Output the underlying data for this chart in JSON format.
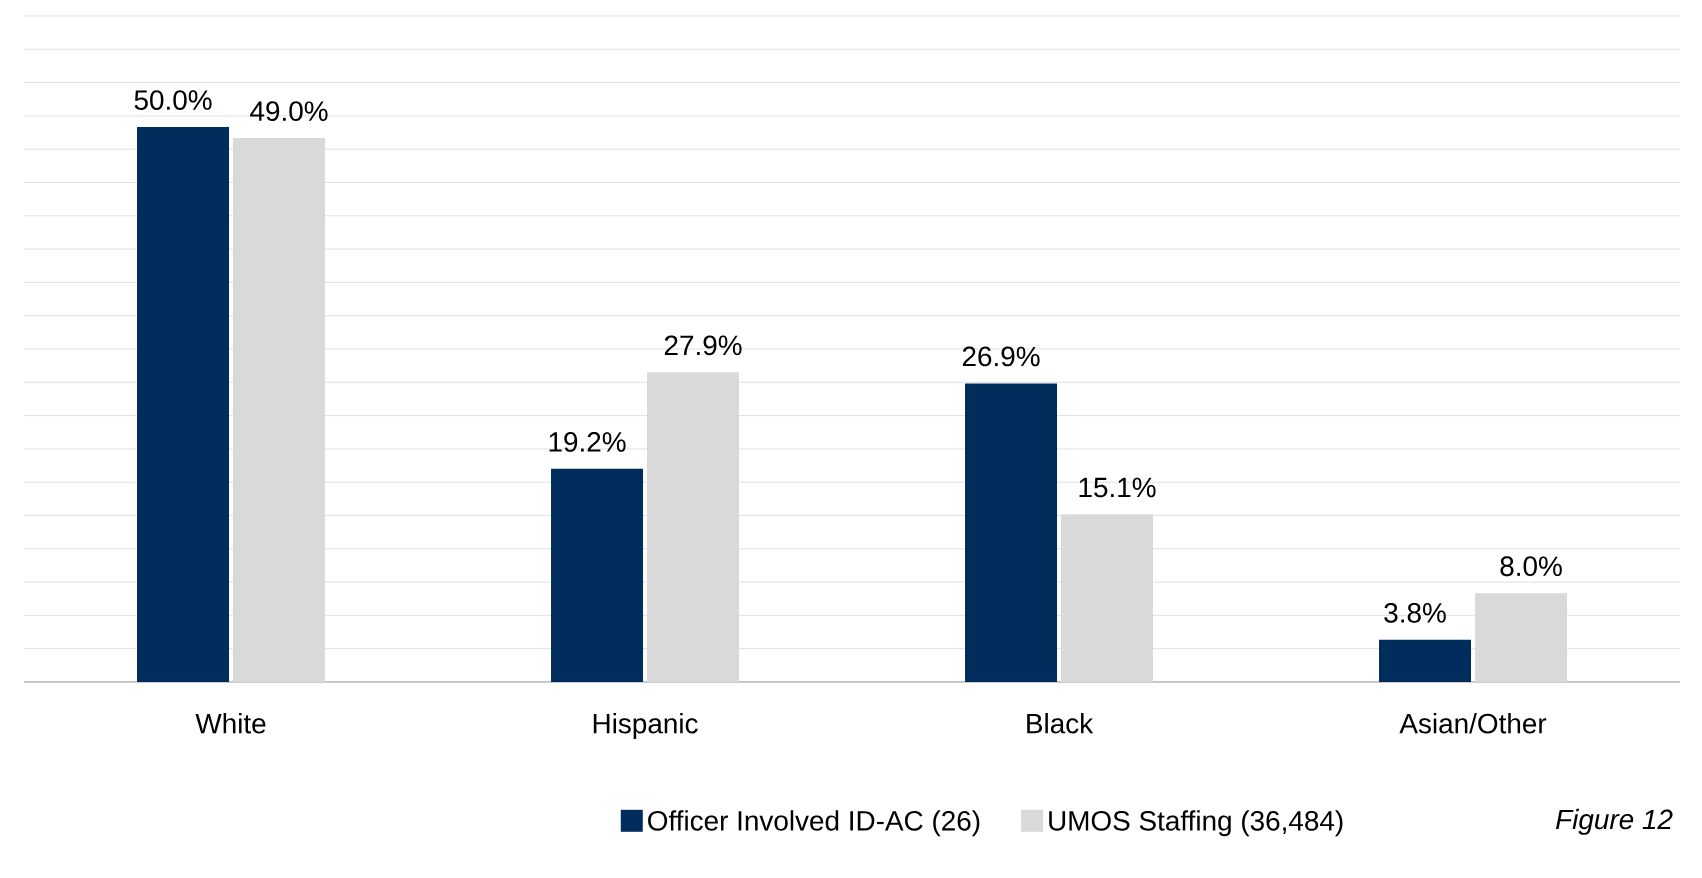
{
  "chart_data": {
    "type": "bar",
    "categories": [
      "White",
      "Hispanic",
      "Black",
      "Asian/Other"
    ],
    "series": [
      {
        "name": "Officer Involved ID-AC (26)",
        "color": "#002d5c",
        "values": [
          50.0,
          19.2,
          26.9,
          3.8
        ],
        "value_labels": [
          "50.0%",
          "19.2%",
          "26.9%",
          "3.8%"
        ]
      },
      {
        "name": "UMOS Staffing (36,484)",
        "color": "#d9d9d9",
        "values": [
          49.0,
          27.9,
          15.1,
          8.0
        ],
        "value_labels": [
          "49.0%",
          "27.9%",
          "15.1%",
          "8.0%"
        ]
      }
    ],
    "ylim": [
      0,
      60
    ],
    "yticks": [
      {
        "value": 0,
        "label": null
      },
      {
        "value": 3,
        "label": null
      },
      {
        "value": 6,
        "label": null
      },
      {
        "value": 9,
        "label": null
      },
      {
        "value": 12,
        "label": null
      },
      {
        "value": 15,
        "label": null
      },
      {
        "value": 18,
        "label": null
      },
      {
        "value": 21,
        "label": null
      },
      {
        "value": 24,
        "label": null
      },
      {
        "value": 27,
        "label": null
      },
      {
        "value": 30,
        "label": null
      },
      {
        "value": 33,
        "label": null
      },
      {
        "value": 36,
        "label": null
      },
      {
        "value": 39,
        "label": null
      },
      {
        "value": 42,
        "label": null
      },
      {
        "value": 45,
        "label": null
      },
      {
        "value": 48,
        "label": null
      },
      {
        "value": 51,
        "label": null
      },
      {
        "value": 54,
        "label": null
      },
      {
        "value": 57,
        "label": null
      },
      {
        "value": 60,
        "label": null
      }
    ],
    "grid": "y",
    "tick_labels": "x",
    "legend": "bottom",
    "annotations": [
      "*Figure 12*"
    ]
  }
}
